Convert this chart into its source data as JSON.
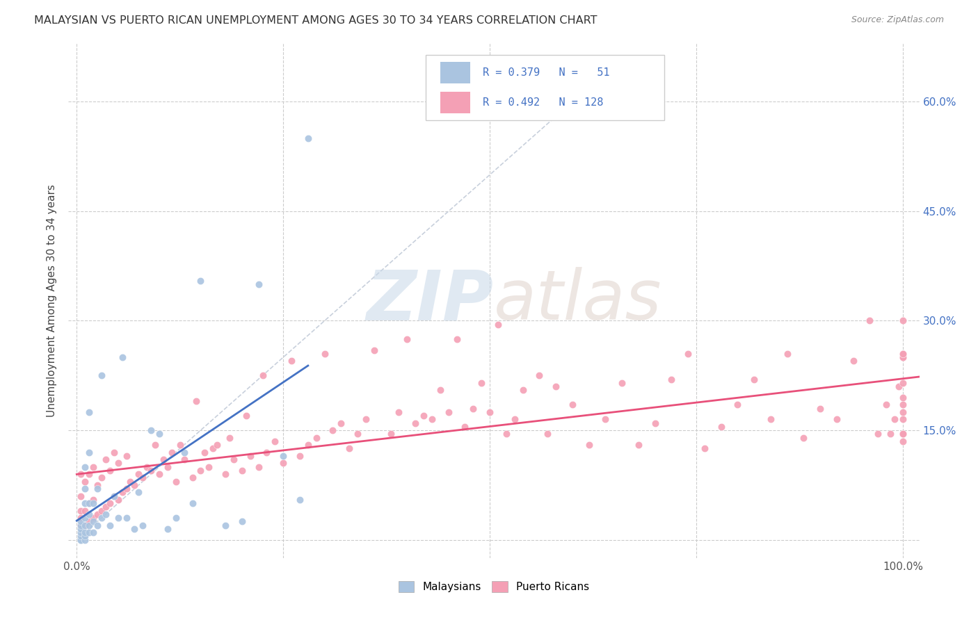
{
  "title": "MALAYSIAN VS PUERTO RICAN UNEMPLOYMENT AMONG AGES 30 TO 34 YEARS CORRELATION CHART",
  "source": "Source: ZipAtlas.com",
  "ylabel": "Unemployment Among Ages 30 to 34 years",
  "xlim": [
    -0.01,
    1.02
  ],
  "ylim": [
    -0.025,
    0.68
  ],
  "xticks": [
    0.0,
    0.25,
    0.5,
    0.75,
    1.0
  ],
  "xticklabels_left": [
    "0.0%",
    "",
    "",
    "",
    "100.0%"
  ],
  "yticks": [
    0.0,
    0.15,
    0.3,
    0.45,
    0.6
  ],
  "yticklabels_right": [
    "",
    "15.0%",
    "30.0%",
    "45.0%",
    "60.0%"
  ],
  "malaysian_R": 0.379,
  "malaysian_N": 51,
  "puerto_rican_R": 0.492,
  "puerto_rican_N": 128,
  "malaysian_color": "#aac4e0",
  "puerto_rican_color": "#f4a0b5",
  "malaysian_line_color": "#4472c4",
  "puerto_rican_line_color": "#e8507a",
  "diagonal_color": "#c8d0dc",
  "background_color": "#ffffff",
  "watermark_zip": "ZIP",
  "watermark_atlas": "atlas",
  "malaysian_x": [
    0.005,
    0.005,
    0.005,
    0.005,
    0.005,
    0.005,
    0.005,
    0.005,
    0.01,
    0.01,
    0.01,
    0.01,
    0.01,
    0.01,
    0.01,
    0.01,
    0.015,
    0.015,
    0.015,
    0.015,
    0.015,
    0.015,
    0.02,
    0.02,
    0.02,
    0.025,
    0.025,
    0.03,
    0.03,
    0.035,
    0.04,
    0.045,
    0.05,
    0.055,
    0.06,
    0.07,
    0.075,
    0.08,
    0.09,
    0.1,
    0.11,
    0.12,
    0.13,
    0.14,
    0.15,
    0.18,
    0.2,
    0.22,
    0.25,
    0.27,
    0.28
  ],
  "malaysian_y": [
    0.0,
    0.0,
    0.0,
    0.005,
    0.01,
    0.015,
    0.02,
    0.025,
    0.0,
    0.005,
    0.01,
    0.02,
    0.03,
    0.05,
    0.07,
    0.1,
    0.01,
    0.02,
    0.035,
    0.05,
    0.12,
    0.175,
    0.01,
    0.025,
    0.05,
    0.02,
    0.07,
    0.03,
    0.225,
    0.035,
    0.02,
    0.06,
    0.03,
    0.25,
    0.03,
    0.015,
    0.065,
    0.02,
    0.15,
    0.145,
    0.015,
    0.03,
    0.12,
    0.05,
    0.355,
    0.02,
    0.025,
    0.35,
    0.115,
    0.055,
    0.55
  ],
  "puerto_rican_x": [
    0.005,
    0.005,
    0.005,
    0.005,
    0.005,
    0.01,
    0.01,
    0.01,
    0.015,
    0.015,
    0.015,
    0.02,
    0.02,
    0.02,
    0.025,
    0.025,
    0.03,
    0.03,
    0.035,
    0.035,
    0.04,
    0.04,
    0.045,
    0.045,
    0.05,
    0.05,
    0.055,
    0.06,
    0.06,
    0.065,
    0.07,
    0.075,
    0.08,
    0.085,
    0.09,
    0.095,
    0.1,
    0.105,
    0.11,
    0.115,
    0.12,
    0.125,
    0.13,
    0.14,
    0.145,
    0.15,
    0.155,
    0.16,
    0.165,
    0.17,
    0.18,
    0.185,
    0.19,
    0.2,
    0.205,
    0.21,
    0.22,
    0.225,
    0.23,
    0.24,
    0.25,
    0.26,
    0.27,
    0.28,
    0.29,
    0.3,
    0.31,
    0.32,
    0.33,
    0.34,
    0.35,
    0.36,
    0.38,
    0.39,
    0.4,
    0.41,
    0.42,
    0.43,
    0.44,
    0.45,
    0.46,
    0.47,
    0.48,
    0.49,
    0.5,
    0.51,
    0.52,
    0.53,
    0.54,
    0.56,
    0.57,
    0.58,
    0.6,
    0.62,
    0.64,
    0.66,
    0.68,
    0.7,
    0.72,
    0.74,
    0.76,
    0.78,
    0.8,
    0.82,
    0.84,
    0.86,
    0.88,
    0.9,
    0.92,
    0.94,
    0.96,
    0.97,
    0.98,
    0.985,
    0.99,
    0.995,
    1.0,
    1.0,
    1.0,
    1.0,
    1.0,
    1.0,
    1.0,
    1.0,
    1.0,
    1.0,
    1.0,
    1.0,
    1.0,
    1.0
  ],
  "puerto_rican_y": [
    0.02,
    0.03,
    0.04,
    0.06,
    0.09,
    0.02,
    0.04,
    0.08,
    0.025,
    0.05,
    0.09,
    0.03,
    0.055,
    0.1,
    0.035,
    0.075,
    0.04,
    0.085,
    0.045,
    0.11,
    0.05,
    0.095,
    0.06,
    0.12,
    0.055,
    0.105,
    0.065,
    0.07,
    0.115,
    0.08,
    0.075,
    0.09,
    0.085,
    0.1,
    0.095,
    0.13,
    0.09,
    0.11,
    0.1,
    0.12,
    0.08,
    0.13,
    0.11,
    0.085,
    0.19,
    0.095,
    0.12,
    0.1,
    0.125,
    0.13,
    0.09,
    0.14,
    0.11,
    0.095,
    0.17,
    0.115,
    0.1,
    0.225,
    0.12,
    0.135,
    0.105,
    0.245,
    0.115,
    0.13,
    0.14,
    0.255,
    0.15,
    0.16,
    0.125,
    0.145,
    0.165,
    0.26,
    0.145,
    0.175,
    0.275,
    0.16,
    0.17,
    0.165,
    0.205,
    0.175,
    0.275,
    0.155,
    0.18,
    0.215,
    0.175,
    0.295,
    0.145,
    0.165,
    0.205,
    0.225,
    0.145,
    0.21,
    0.185,
    0.13,
    0.165,
    0.215,
    0.13,
    0.16,
    0.22,
    0.255,
    0.125,
    0.155,
    0.185,
    0.22,
    0.165,
    0.255,
    0.14,
    0.18,
    0.165,
    0.245,
    0.3,
    0.145,
    0.185,
    0.145,
    0.165,
    0.21,
    0.25,
    0.145,
    0.185,
    0.25,
    0.145,
    0.165,
    0.215,
    0.255,
    0.3,
    0.135,
    0.195,
    0.255,
    0.145,
    0.175
  ]
}
